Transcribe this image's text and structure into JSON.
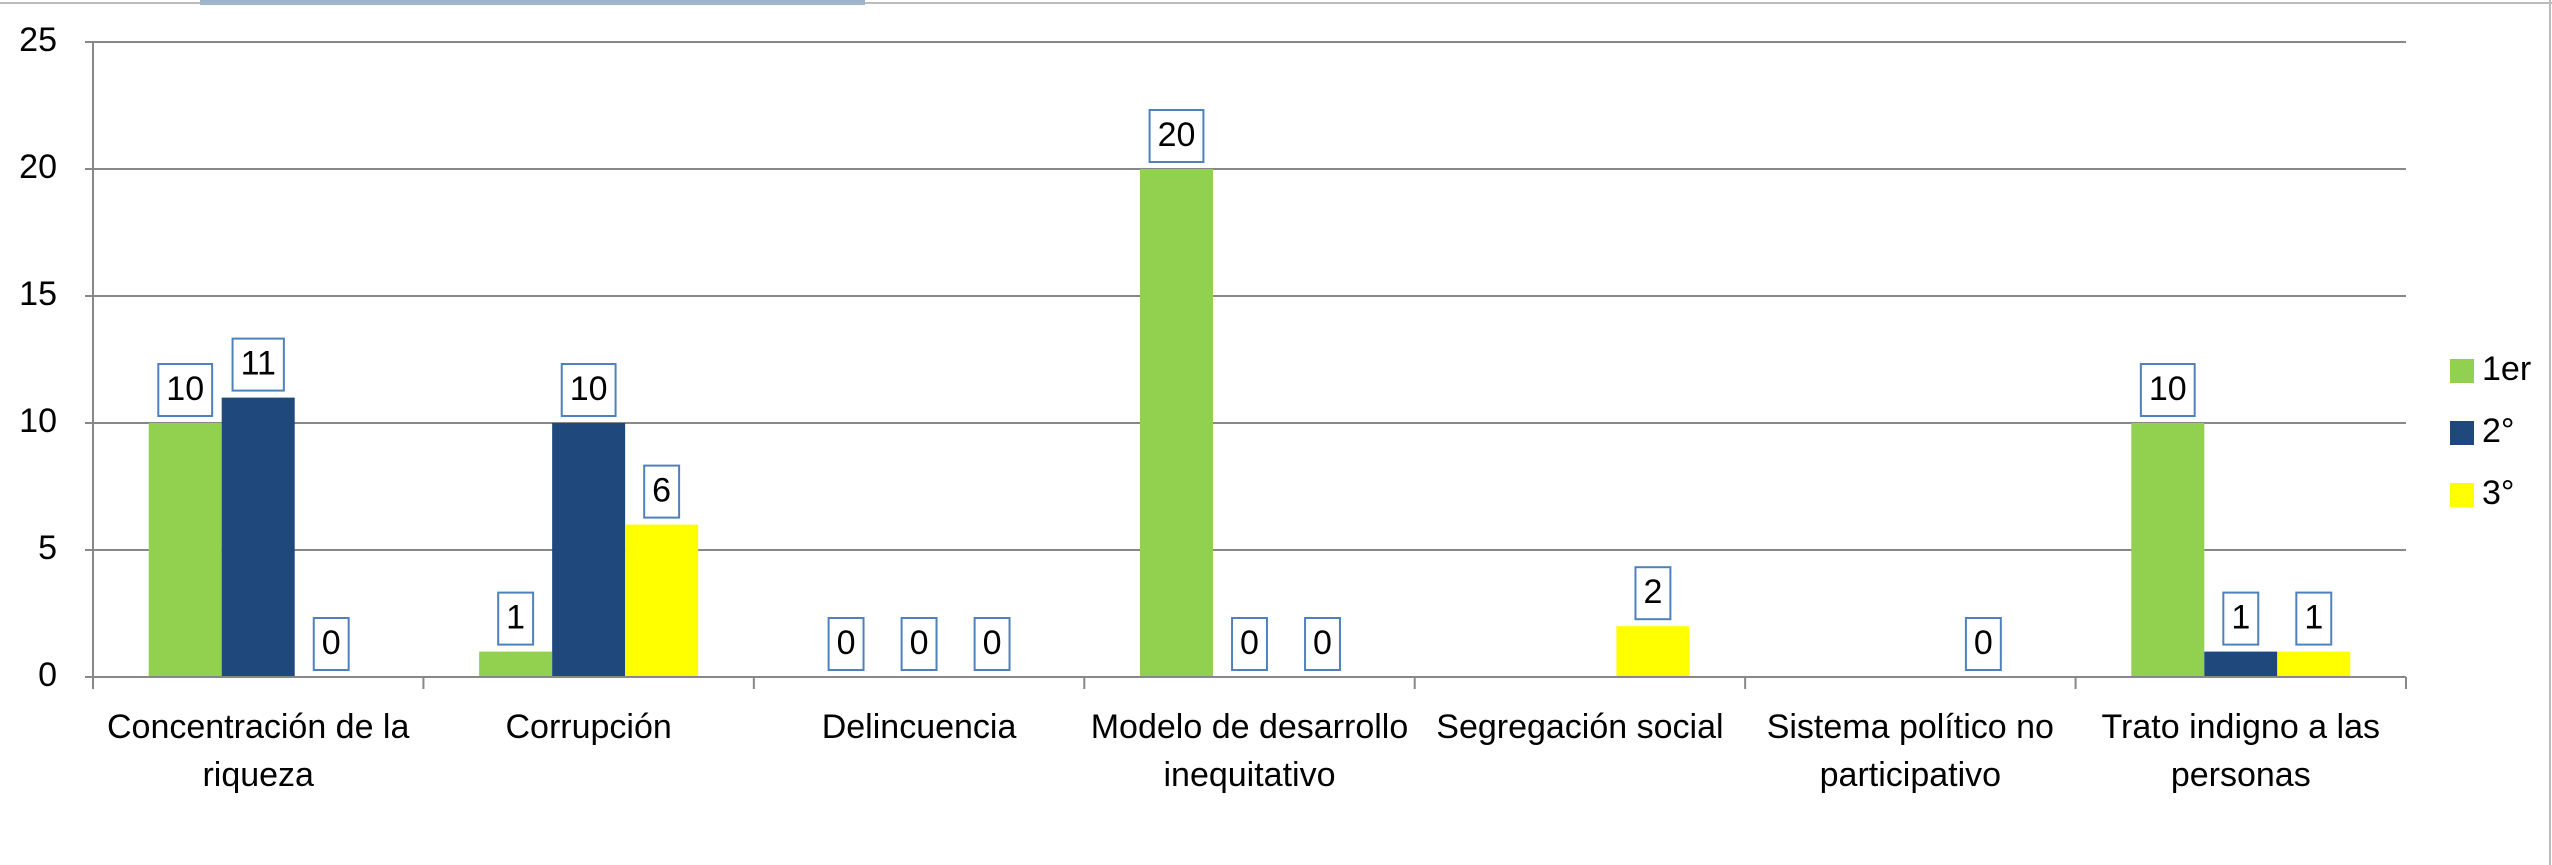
{
  "chart_data": {
    "type": "bar",
    "categories": [
      "Concentración de la riqueza",
      "Corrupción",
      "Delincuencia",
      "Modelo de desarrollo inequitativo",
      "Segregación social",
      "Sistema político no participativo",
      "Trato indigno a las personas"
    ],
    "series": [
      {
        "name": "1er",
        "color": "#92d050",
        "values": [
          10,
          1,
          0,
          20,
          null,
          null,
          10
        ]
      },
      {
        "name": "2°",
        "color": "#1f497d",
        "values": [
          11,
          10,
          0,
          0,
          null,
          null,
          1
        ]
      },
      {
        "name": "3°",
        "color": "#ffff00",
        "values": [
          0,
          6,
          0,
          0,
          2,
          0,
          1
        ]
      }
    ],
    "ylim": [
      0,
      25
    ],
    "yticks": [
      0,
      5,
      10,
      15,
      20,
      25
    ],
    "grid": true,
    "legend": "right"
  }
}
